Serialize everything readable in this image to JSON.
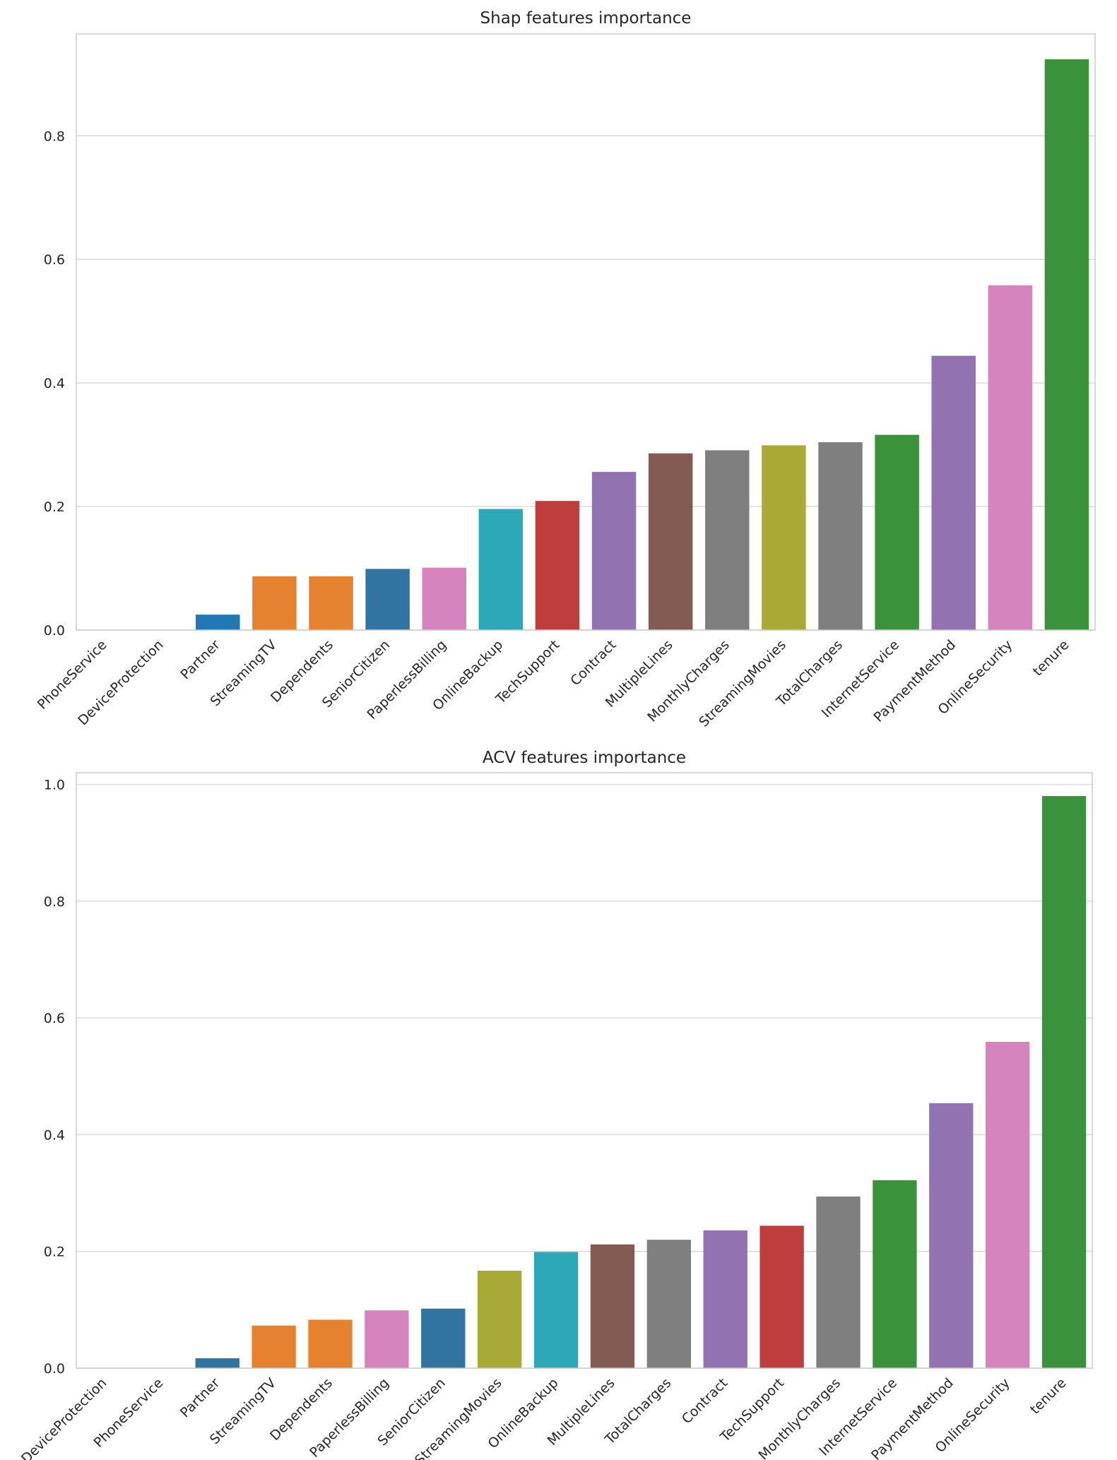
{
  "chart_data": [
    {
      "type": "bar",
      "title": "Shap features importance",
      "xlabel": "",
      "ylabel": "",
      "ylim": [
        0,
        0.965
      ],
      "yticks": [
        0.0,
        0.2,
        0.4,
        0.6,
        0.8
      ],
      "ytick_labels": [
        "0.0",
        "0.2",
        "0.4",
        "0.6",
        "0.8"
      ],
      "grid": true,
      "categories": [
        "PhoneService",
        "DeviceProtection",
        "Partner",
        "StreamingTV",
        "Dependents",
        "SeniorCitizen",
        "PaperlessBilling",
        "OnlineBackup",
        "TechSupport",
        "Contract",
        "MultipleLines",
        "MonthlyCharges",
        "StreamingMovies",
        "TotalCharges",
        "InternetService",
        "PaymentMethod",
        "OnlineSecurity",
        "tenure"
      ],
      "values": [
        0.0,
        0.0,
        0.025,
        0.087,
        0.087,
        0.099,
        0.101,
        0.196,
        0.209,
        0.256,
        0.286,
        0.291,
        0.299,
        0.304,
        0.316,
        0.444,
        0.558,
        0.924
      ],
      "colors": [
        "#1f77b4",
        "#ff7f0e",
        "#1f77b4",
        "#e6812e",
        "#e6812e",
        "#3274a1",
        "#d684bd",
        "#2ca8b8",
        "#c03d3e",
        "#9372b2",
        "#845b53",
        "#7f7f7f",
        "#a9aa35",
        "#7f7f7f",
        "#3a923a",
        "#9372b2",
        "#d684bd",
        "#3a923a"
      ]
    },
    {
      "type": "bar",
      "title": "ACV features importance",
      "xlabel": "",
      "ylabel": "",
      "ylim": [
        0,
        1.02
      ],
      "yticks": [
        0.0,
        0.2,
        0.4,
        0.6,
        0.8,
        1.0
      ],
      "ytick_labels": [
        "0.0",
        "0.2",
        "0.4",
        "0.6",
        "0.8",
        "1.0"
      ],
      "grid": true,
      "categories": [
        "DeviceProtection",
        "PhoneService",
        "Partner",
        "StreamingTV",
        "Dependents",
        "PaperlessBilling",
        "SeniorCitizen",
        "StreamingMovies",
        "OnlineBackup",
        "MultipleLines",
        "TotalCharges",
        "Contract",
        "TechSupport",
        "MonthlyCharges",
        "InternetService",
        "PaymentMethod",
        "OnlineSecurity",
        "tenure"
      ],
      "values": [
        0.0,
        0.0,
        0.017,
        0.073,
        0.083,
        0.099,
        0.102,
        0.167,
        0.199,
        0.212,
        0.22,
        0.236,
        0.244,
        0.294,
        0.322,
        0.454,
        0.559,
        0.98
      ],
      "colors": [
        "#ff7f0e",
        "#1f77b4",
        "#3274a1",
        "#e6812e",
        "#e6812e",
        "#d684bd",
        "#3274a1",
        "#a9aa35",
        "#2ca8b8",
        "#845b53",
        "#7f7f7f",
        "#9372b2",
        "#c03d3e",
        "#7f7f7f",
        "#3a923a",
        "#9372b2",
        "#d684bd",
        "#3a923a"
      ]
    }
  ]
}
